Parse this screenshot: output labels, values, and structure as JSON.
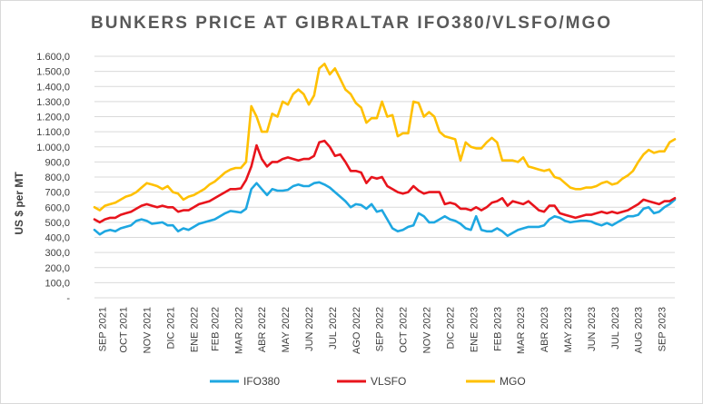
{
  "chart_data": {
    "type": "line",
    "title": "BUNKERS PRICE AT GIBRALTAR IFO380/VLSFO/MGO",
    "ylabel": "US $ per MT",
    "xlabel": "",
    "ylim": [
      0,
      1600
    ],
    "yticks": [
      "-",
      "100,0",
      "200,0",
      "300,0",
      "400,0",
      "500,0",
      "600,0",
      "700,0",
      "800,0",
      "900,0",
      "1.000,0",
      "1.100,0",
      "1.200,0",
      "1.300,0",
      "1.400,0",
      "1.500,0",
      "1.600,0"
    ],
    "grid": true,
    "legend_position": "bottom",
    "x_labels": [
      "SEP 2021",
      "OCT 2021",
      "NOV 2021",
      "DIC 2021",
      "ENE 2022",
      "FEB 2022",
      "MAR 2022",
      "ABR 2022",
      "MAY 2022",
      "JUN 2022",
      "JUL 2022",
      "AGO 2022",
      "SEP 2022",
      "OCT 2022",
      "NOV 2022",
      "DIC 2022",
      "ENE 2023",
      "FEB 2023",
      "MAR 2023",
      "ABR 2023",
      "MAY 2023",
      "JUN 2023",
      "JUL 2023",
      "AUG 2023",
      "SEP 2023"
    ],
    "x_label_positions": [
      1.5,
      5.5,
      10,
      14.5,
      19,
      23,
      27.5,
      32,
      36.5,
      41,
      45.5,
      50,
      54.5,
      59,
      63.5,
      68,
      72.5,
      77,
      81.5,
      86,
      90.5,
      95,
      99.5,
      104,
      108.5
    ],
    "point_count": 112,
    "series": [
      {
        "name": "IFO380",
        "color": "#1ea7e1",
        "values": [
          450,
          420,
          440,
          450,
          440,
          460,
          470,
          480,
          510,
          520,
          510,
          490,
          495,
          500,
          480,
          480,
          440,
          460,
          450,
          470,
          490,
          500,
          510,
          520,
          540,
          560,
          575,
          570,
          565,
          590,
          720,
          760,
          720,
          680,
          720,
          710,
          710,
          715,
          740,
          750,
          740,
          740,
          760,
          765,
          750,
          730,
          700,
          670,
          640,
          600,
          620,
          615,
          590,
          620,
          570,
          580,
          520,
          460,
          440,
          450,
          470,
          480,
          560,
          540,
          500,
          500,
          520,
          540,
          520,
          510,
          490,
          460,
          450,
          540,
          450,
          440,
          440,
          460,
          440,
          410,
          430,
          450,
          460,
          470,
          470,
          470,
          480,
          520,
          540,
          530,
          510,
          500,
          505,
          510,
          510,
          505,
          490,
          480,
          495,
          480,
          500,
          520,
          540,
          540,
          550,
          590,
          600,
          560,
          570,
          600,
          620,
          650
        ]
      },
      {
        "name": "VLSFO",
        "color": "#e8141c",
        "values": [
          520,
          500,
          520,
          530,
          530,
          550,
          560,
          570,
          590,
          610,
          620,
          610,
          600,
          610,
          600,
          600,
          570,
          580,
          580,
          600,
          620,
          630,
          640,
          660,
          680,
          700,
          720,
          720,
          725,
          780,
          870,
          1010,
          920,
          870,
          900,
          900,
          920,
          930,
          920,
          910,
          920,
          920,
          940,
          1030,
          1040,
          1000,
          940,
          950,
          900,
          840,
          840,
          830,
          760,
          800,
          790,
          800,
          740,
          720,
          700,
          690,
          700,
          740,
          710,
          690,
          700,
          700,
          700,
          620,
          630,
          620,
          590,
          590,
          580,
          600,
          580,
          600,
          630,
          640,
          660,
          610,
          640,
          630,
          620,
          640,
          610,
          580,
          570,
          610,
          610,
          560,
          550,
          540,
          530,
          540,
          550,
          550,
          560,
          570,
          560,
          570,
          560,
          570,
          580,
          600,
          620,
          650,
          640,
          630,
          620,
          640,
          640,
          660
        ]
      },
      {
        "name": "MGO",
        "color": "#ffc000",
        "values": [
          600,
          580,
          610,
          620,
          630,
          650,
          670,
          680,
          700,
          730,
          760,
          750,
          740,
          720,
          740,
          700,
          690,
          650,
          670,
          680,
          700,
          720,
          750,
          770,
          800,
          830,
          850,
          860,
          860,
          900,
          1270,
          1200,
          1100,
          1100,
          1220,
          1200,
          1300,
          1280,
          1350,
          1380,
          1350,
          1280,
          1340,
          1520,
          1550,
          1480,
          1520,
          1450,
          1380,
          1350,
          1290,
          1260,
          1160,
          1190,
          1190,
          1300,
          1200,
          1210,
          1070,
          1090,
          1090,
          1300,
          1290,
          1200,
          1230,
          1200,
          1100,
          1070,
          1060,
          1050,
          910,
          1030,
          1000,
          990,
          990,
          1030,
          1060,
          1030,
          910,
          910,
          910,
          900,
          930,
          870,
          860,
          850,
          840,
          850,
          800,
          790,
          760,
          730,
          720,
          720,
          730,
          730,
          740,
          760,
          770,
          750,
          760,
          790,
          810,
          840,
          900,
          950,
          980,
          960,
          970,
          970,
          1030,
          1050
        ]
      }
    ]
  }
}
